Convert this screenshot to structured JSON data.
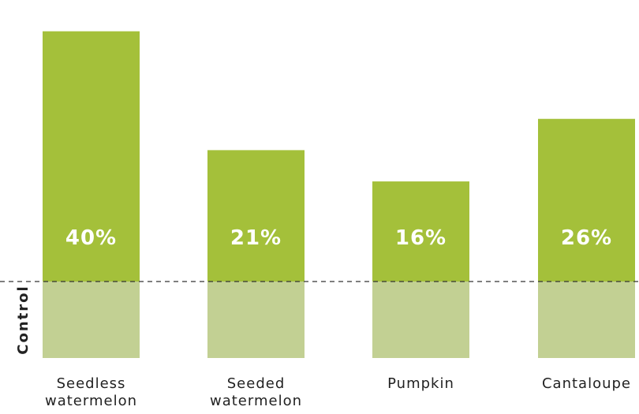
{
  "chart_data": {
    "type": "bar",
    "categories": [
      "Seedless\nwatermelon",
      "Seeded\nwatermelon",
      "Pumpkin",
      "Cantaloupe"
    ],
    "values": [
      40,
      21,
      16,
      26
    ],
    "value_labels": [
      "40%",
      "21%",
      "16%",
      "26%"
    ],
    "baseline_label": "Control",
    "ylim": [
      -13,
      45
    ],
    "grid": false,
    "legend": "none",
    "colors": {
      "bar": "#a4c03a",
      "control": "#c2d093",
      "baseline_line": "#333333",
      "text": "#222222"
    }
  }
}
